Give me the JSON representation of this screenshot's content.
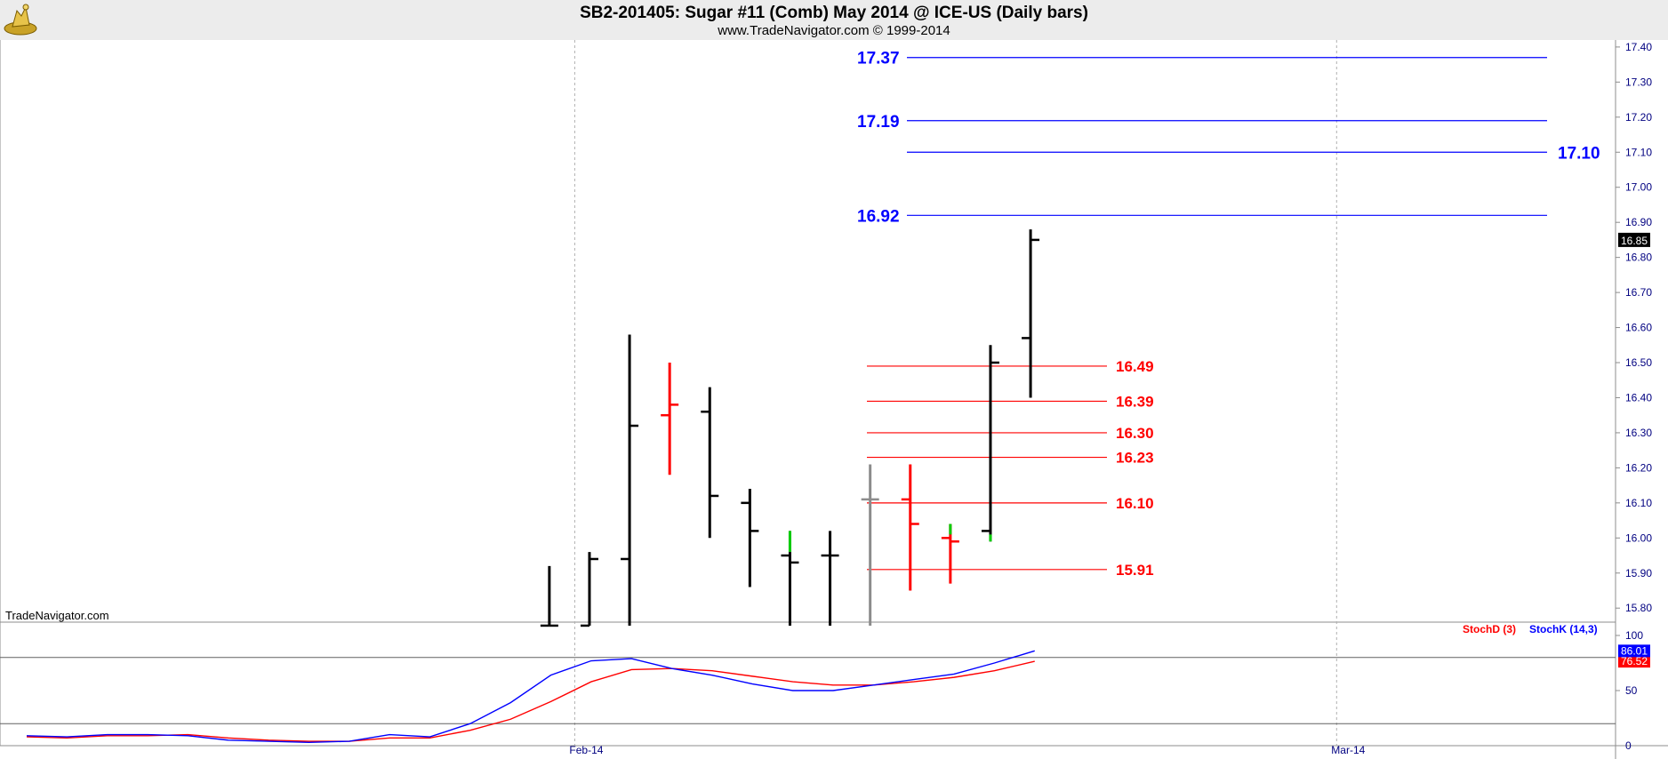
{
  "header": {
    "title": "SB2-201405:  Sugar #11 (Comb) May 2014 @ ICE-US  (Daily bars)",
    "subtitle": "www.TradeNavigator.com © 1999-2014"
  },
  "watermark": "TradeNavigator.com",
  "colors": {
    "background": "#ffffff",
    "up_bar": "#000000",
    "down_bar": "#ff0000",
    "neutral_bar": "#8c8c8c",
    "green_tick": "#00cc00",
    "blue_level": "#0000ff",
    "red_level": "#ff0000",
    "stochD": "#ff0000",
    "stochK": "#0000ff",
    "axis_text": "#000080",
    "frame": "#8c8c8c"
  },
  "chart_data": [
    {
      "type": "ohlc",
      "title": "SB2-201405:  Sugar #11 (Comb) May 2014 @ ICE-US  (Daily bars)",
      "x_ticks": [
        {
          "label": "Feb-14",
          "bar": 14
        },
        {
          "label": "Mar-14",
          "bar": 33
        }
      ],
      "bar_range": [
        0,
        40
      ],
      "ylim": [
        15.76,
        17.42
      ],
      "y_ticks": [
        15.8,
        15.9,
        16.0,
        16.1,
        16.2,
        16.3,
        16.4,
        16.5,
        16.6,
        16.7,
        16.8,
        16.9,
        17.0,
        17.1,
        17.2,
        17.3,
        17.4
      ],
      "y_tick_labels": [
        "15.80",
        "15.90",
        "16.00",
        "16.10",
        "16.20",
        "16.30",
        "16.40",
        "16.50",
        "16.60",
        "16.70",
        "16.80",
        "16.90",
        "17.00",
        "17.10",
        "17.20",
        "17.30",
        "17.40"
      ],
      "last_price": "16.85",
      "bars": [
        {
          "bar": 13.7,
          "high": 15.92,
          "low": 15.75,
          "open": 15.75,
          "close": 15.75,
          "color": "black"
        },
        {
          "bar": 14.7,
          "high": 15.96,
          "low": 15.75,
          "open": 15.75,
          "close": 15.94,
          "color": "black"
        },
        {
          "bar": 15.7,
          "high": 16.58,
          "low": 15.75,
          "open": 15.94,
          "close": 16.32,
          "color": "black"
        },
        {
          "bar": 16.7,
          "high": 16.5,
          "low": 16.18,
          "open": 16.35,
          "close": 16.38,
          "color": "red"
        },
        {
          "bar": 17.7,
          "high": 16.43,
          "low": 16.0,
          "open": 16.36,
          "close": 16.12,
          "color": "black"
        },
        {
          "bar": 18.7,
          "high": 16.14,
          "low": 15.86,
          "open": 16.1,
          "close": 16.02,
          "color": "black"
        },
        {
          "bar": 19.7,
          "high": 16.02,
          "low": 15.75,
          "open": 15.95,
          "close": 15.93,
          "color": "black",
          "green_high": 15.96
        },
        {
          "bar": 20.7,
          "high": 16.02,
          "low": 15.75,
          "open": 15.95,
          "close": 15.95,
          "color": "black"
        },
        {
          "bar": 21.7,
          "high": 16.21,
          "low": 15.75,
          "open": 16.11,
          "close": 16.11,
          "color": "gray"
        },
        {
          "bar": 22.7,
          "high": 16.21,
          "low": 15.85,
          "open": 16.11,
          "close": 16.04,
          "color": "red"
        },
        {
          "bar": 23.7,
          "high": 16.04,
          "low": 15.87,
          "open": 16.0,
          "close": 15.99,
          "color": "red",
          "green_high": 16.01
        },
        {
          "bar": 24.7,
          "high": 16.55,
          "low": 15.99,
          "open": 16.02,
          "close": 16.5,
          "color": "black",
          "green_low": 16.01
        },
        {
          "bar": 25.7,
          "high": 16.88,
          "low": 16.4,
          "open": 16.57,
          "close": 16.85,
          "color": "black"
        }
      ],
      "blue_levels": [
        {
          "value": 17.37,
          "label": "17.37",
          "label_side": "left"
        },
        {
          "value": 17.19,
          "label": "17.19",
          "label_side": "left"
        },
        {
          "value": 17.1,
          "label": "17.10",
          "label_side": "right"
        },
        {
          "value": 16.92,
          "label": "16.92",
          "label_side": "left"
        }
      ],
      "red_levels": [
        {
          "value": 16.49,
          "label": "16.49"
        },
        {
          "value": 16.39,
          "label": "16.39"
        },
        {
          "value": 16.3,
          "label": "16.30"
        },
        {
          "value": 16.23,
          "label": "16.23"
        },
        {
          "value": 16.1,
          "label": "16.10"
        },
        {
          "value": 15.91,
          "label": "15.91"
        }
      ]
    },
    {
      "type": "line",
      "ylim": [
        0,
        100
      ],
      "y_ticks": [
        0,
        50,
        100
      ],
      "y_tick_labels": [
        "0",
        "50",
        "100"
      ],
      "reference_lines": [
        20,
        80
      ],
      "legend": [
        "StochD (3)",
        "StochK (14,3)"
      ],
      "series": [
        {
          "name": "StochD (3)",
          "color": "#ff0000",
          "last_label": "76.52",
          "x": [
            0,
            1,
            2,
            3,
            4,
            5,
            6,
            7,
            8,
            9,
            10,
            11,
            12,
            13,
            14,
            15,
            16,
            17,
            18,
            19,
            20,
            21,
            22,
            23,
            24,
            25
          ],
          "values": [
            8,
            7,
            9,
            9,
            10,
            7,
            5,
            4,
            4,
            7,
            7,
            14,
            24,
            40,
            58,
            69,
            70,
            68,
            63,
            58,
            55,
            55,
            58,
            62,
            68,
            76.52
          ]
        },
        {
          "name": "StochK (14,3)",
          "color": "#0000ff",
          "last_label": "86.01",
          "x": [
            0,
            1,
            2,
            3,
            4,
            5,
            6,
            7,
            8,
            9,
            10,
            11,
            12,
            13,
            14,
            15,
            16,
            17,
            18,
            19,
            20,
            21,
            22,
            23,
            24,
            25
          ],
          "values": [
            9,
            8,
            10,
            10,
            9,
            5,
            4,
            3,
            4,
            10,
            8,
            20,
            39,
            64,
            77,
            79,
            70,
            64,
            56,
            50,
            50,
            55,
            60,
            65,
            75,
            86.01
          ]
        }
      ]
    }
  ]
}
